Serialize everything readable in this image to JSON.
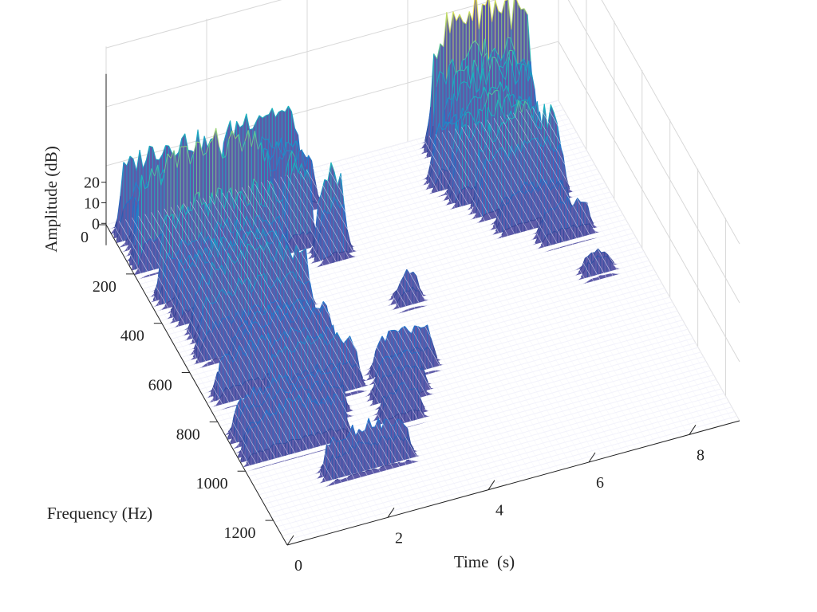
{
  "chart_data": {
    "type": "surface",
    "title": "",
    "xlabel": "Time  (s)",
    "ylabel": "Frequency (Hz)",
    "zlabel": "Amplitude (dB)",
    "xlim": [
      0,
      9
    ],
    "ylim": [
      0,
      1300
    ],
    "zlim": [
      -10,
      20
    ],
    "x_ticks": [
      0,
      2,
      4,
      6,
      8
    ],
    "y_ticks": [
      0,
      200,
      400,
      600,
      800,
      1000,
      1200
    ],
    "z_ticks": [
      0,
      10,
      20
    ],
    "grid": true,
    "colormap": "parula",
    "colors": {
      "low": "#3c3a8a",
      "mid": "#1fa4d6",
      "high": "#f5e64a",
      "grid": "#d8d8d8"
    },
    "bands": [
      {
        "f": 60,
        "segments": [
          {
            "t0": 0.2,
            "t1": 2.0,
            "amp": 12
          },
          {
            "t0": 2.2,
            "t1": 3.6,
            "amp": 13
          },
          {
            "t0": 6.4,
            "t1": 8.2,
            "amp": 20
          }
        ]
      },
      {
        "f": 120,
        "segments": [
          {
            "t0": 0.3,
            "t1": 2.1,
            "amp": 11
          },
          {
            "t0": 2.6,
            "t1": 3.7,
            "amp": 10
          },
          {
            "t0": 6.5,
            "t1": 8.1,
            "amp": 15
          }
        ]
      },
      {
        "f": 180,
        "segments": [
          {
            "t0": 0.2,
            "t1": 2.7,
            "amp": 16
          },
          {
            "t0": 6.1,
            "t1": 7.9,
            "amp": 12
          }
        ]
      },
      {
        "f": 250,
        "segments": [
          {
            "t0": 0.8,
            "t1": 1.6,
            "amp": 10
          },
          {
            "t0": 2.9,
            "t1": 3.3,
            "amp": 14
          },
          {
            "t0": 6.3,
            "t1": 7.9,
            "amp": 14
          }
        ]
      },
      {
        "f": 320,
        "segments": [
          {
            "t0": 0.3,
            "t1": 2.6,
            "amp": 13
          },
          {
            "t0": 3.4,
            "t1": 3.8,
            "amp": 12
          },
          {
            "t0": 6.6,
            "t1": 8.1,
            "amp": 13
          }
        ]
      },
      {
        "f": 400,
        "segments": [
          {
            "t0": 0.4,
            "t1": 2.4,
            "amp": 11
          },
          {
            "t0": 6.8,
            "t1": 8.0,
            "amp": 6
          }
        ]
      },
      {
        "f": 480,
        "segments": [
          {
            "t0": 0.5,
            "t1": 2.6,
            "amp": 10
          },
          {
            "t0": 7.4,
            "t1": 8.2,
            "amp": 5
          }
        ]
      },
      {
        "f": 560,
        "segments": [
          {
            "t0": 0.4,
            "t1": 2.5,
            "amp": 9
          },
          {
            "t0": 4.3,
            "t1": 4.6,
            "amp": 4
          }
        ]
      },
      {
        "f": 640,
        "segments": [
          {
            "t0": 0.8,
            "t1": 2.6,
            "amp": 8
          },
          {
            "t0": 7.8,
            "t1": 8.2,
            "amp": 3
          }
        ]
      },
      {
        "f": 720,
        "segments": [
          {
            "t0": 0.3,
            "t1": 2.5,
            "amp": 7
          }
        ]
      },
      {
        "f": 800,
        "segments": [
          {
            "t0": 1.1,
            "t1": 2.7,
            "amp": 8
          },
          {
            "t0": 3.2,
            "t1": 4.2,
            "amp": 6
          }
        ]
      },
      {
        "f": 880,
        "segments": [
          {
            "t0": 0.2,
            "t1": 2.2,
            "amp": 7
          },
          {
            "t0": 3.0,
            "t1": 3.8,
            "amp": 6
          }
        ]
      },
      {
        "f": 960,
        "segments": [
          {
            "t0": 0.2,
            "t1": 2.0,
            "amp": 7
          },
          {
            "t0": 2.9,
            "t1": 3.5,
            "amp": 5
          }
        ]
      },
      {
        "f": 1100,
        "segments": [
          {
            "t0": 1.4,
            "t1": 2.9,
            "amp": 6
          }
        ]
      }
    ]
  }
}
